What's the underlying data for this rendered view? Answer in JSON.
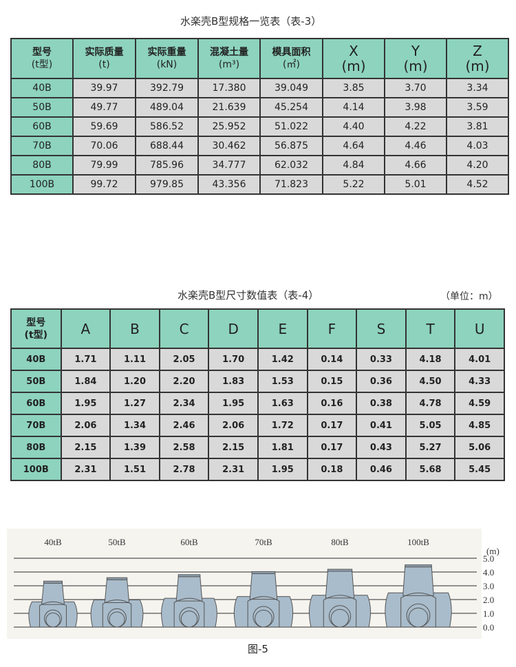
{
  "table3": {
    "title": "水楽壳B型规格一览表（表-3）",
    "headers": [
      {
        "l1": "型号",
        "l2": "(t型)"
      },
      {
        "l1": "实际质量",
        "l2": "(t)"
      },
      {
        "l1": "实际重量",
        "l2": "(kN)"
      },
      {
        "l1": "混凝土量",
        "l2": "(m³)"
      },
      {
        "l1": "模具面积",
        "l2": "(㎡)"
      },
      {
        "l1": "X",
        "l2": "(m)"
      },
      {
        "l1": "Y",
        "l2": "(m)"
      },
      {
        "l1": "Z",
        "l2": "(m)"
      }
    ],
    "rows": [
      [
        "40B",
        "39.97",
        "392.79",
        "17.380",
        "39.049",
        "3.85",
        "3.70",
        "3.34"
      ],
      [
        "50B",
        "49.77",
        "489.04",
        "21.639",
        "45.254",
        "4.14",
        "3.98",
        "3.59"
      ],
      [
        "60B",
        "59.69",
        "586.52",
        "25.952",
        "51.022",
        "4.40",
        "4.22",
        "3.81"
      ],
      [
        "70B",
        "70.06",
        "688.44",
        "30.462",
        "56.875",
        "4.64",
        "4.46",
        "4.03"
      ],
      [
        "80B",
        "79.99",
        "785.96",
        "34.777",
        "62.032",
        "4.84",
        "4.66",
        "4.20"
      ],
      [
        "100B",
        "99.72",
        "979.85",
        "43.356",
        "71.823",
        "5.22",
        "5.01",
        "4.52"
      ]
    ]
  },
  "table4": {
    "title": "水楽壳B型尺寸数值表（表-4）",
    "unit": "（单位：m）",
    "model_header": {
      "l1": "型号",
      "l2": "(t型)"
    },
    "headers": [
      "A",
      "B",
      "C",
      "D",
      "E",
      "F",
      "S",
      "T",
      "U"
    ],
    "rows": [
      [
        "40B",
        "1.71",
        "1.11",
        "2.05",
        "1.70",
        "1.42",
        "0.14",
        "0.33",
        "4.18",
        "4.01"
      ],
      [
        "50B",
        "1.84",
        "1.20",
        "2.20",
        "1.83",
        "1.53",
        "0.15",
        "0.36",
        "4.50",
        "4.33"
      ],
      [
        "60B",
        "1.95",
        "1.27",
        "2.34",
        "1.95",
        "1.63",
        "0.16",
        "0.38",
        "4.78",
        "4.59"
      ],
      [
        "70B",
        "2.06",
        "1.34",
        "2.46",
        "2.06",
        "1.72",
        "0.17",
        "0.41",
        "5.05",
        "4.85"
      ],
      [
        "80B",
        "2.15",
        "1.39",
        "2.58",
        "2.15",
        "1.81",
        "0.17",
        "0.43",
        "5.27",
        "5.06"
      ],
      [
        "100B",
        "2.31",
        "1.51",
        "2.78",
        "2.31",
        "1.95",
        "0.18",
        "0.46",
        "5.68",
        "5.45"
      ]
    ]
  },
  "figure": {
    "caption": "图-5",
    "unit": "(m)",
    "y_ticks": [
      "0.0",
      "1.0",
      "2.0",
      "3.0",
      "4.0",
      "5.0"
    ],
    "models": [
      "40tB",
      "50tB",
      "60tB",
      "70tB",
      "80tB",
      "100tB"
    ],
    "fill_color": "#a9bccb",
    "background": "#f6f4ef"
  }
}
